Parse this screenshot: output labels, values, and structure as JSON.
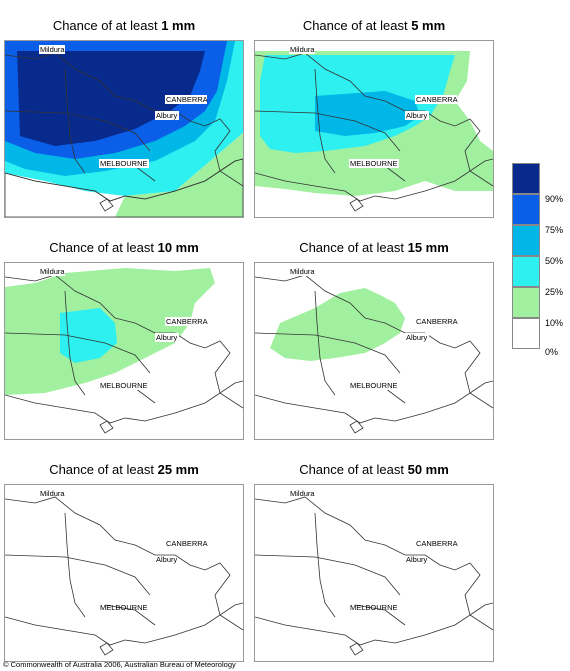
{
  "panels": [
    {
      "title_prefix": "Chance of at least ",
      "title_amount": "1 mm"
    },
    {
      "title_prefix": "Chance of at least ",
      "title_amount": "5 mm"
    },
    {
      "title_prefix": "Chance of at least ",
      "title_amount": "10 mm"
    },
    {
      "title_prefix": "Chance of at least ",
      "title_amount": "15 mm"
    },
    {
      "title_prefix": "Chance of at least ",
      "title_amount": "25 mm"
    },
    {
      "title_prefix": "Chance of at least ",
      "title_amount": "50 mm"
    }
  ],
  "places": {
    "mildura": "Mildura",
    "canberra": "CANBERRA",
    "albury": "Albury",
    "melbourne": "MELBOURNE"
  },
  "legend": {
    "labels": [
      "90%",
      "75%",
      "50%",
      "25%",
      "10%",
      "0%"
    ],
    "colors": [
      "#082a8c",
      "#0a5ee8",
      "#00b7e8",
      "#2ef0f0",
      "#a0f0a0",
      "#ffffff"
    ]
  },
  "copyright": "© Commonwealth of Australia 2006, Australian Bureau of Meteorology"
}
